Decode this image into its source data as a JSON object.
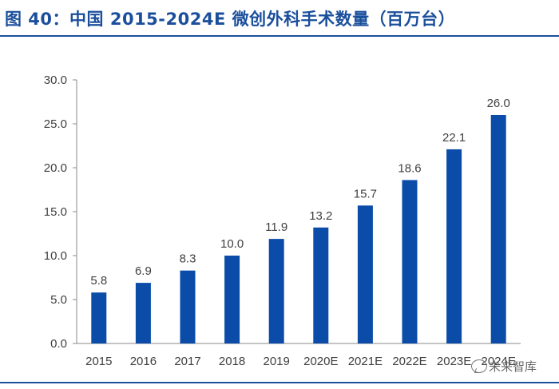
{
  "title": "图 40：中国 2015-2024E 微创外科手术数量（百万台）",
  "watermark": "未来智库",
  "colors": {
    "bar": "#0a4ca8",
    "title": "#1b4f9c",
    "axis_text": "#404040"
  },
  "chart_data": {
    "type": "bar",
    "categories": [
      "2015",
      "2016",
      "2017",
      "2018",
      "2019",
      "2020E",
      "2021E",
      "2022E",
      "2023E",
      "2024E"
    ],
    "values": [
      5.8,
      6.9,
      8.3,
      10.0,
      11.9,
      13.2,
      15.7,
      18.6,
      22.1,
      26.0
    ],
    "value_labels": [
      "5.8",
      "6.9",
      "8.3",
      "10.0",
      "11.9",
      "13.2",
      "15.7",
      "18.6",
      "22.1",
      "26.0"
    ],
    "yticks": [
      "0.0",
      "5.0",
      "10.0",
      "15.0",
      "20.0",
      "25.0",
      "30.0"
    ],
    "ylim": [
      0,
      30
    ],
    "grid": false,
    "legend": false
  }
}
